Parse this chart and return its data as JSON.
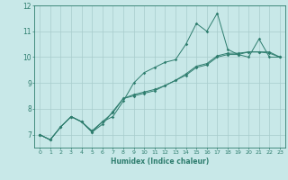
{
  "xlabel": "Humidex (Indice chaleur)",
  "x": [
    0,
    1,
    2,
    3,
    4,
    5,
    6,
    7,
    8,
    9,
    10,
    11,
    12,
    13,
    14,
    15,
    16,
    17,
    18,
    19,
    20,
    21,
    22,
    23
  ],
  "line1": [
    7.0,
    6.8,
    7.3,
    7.7,
    7.5,
    7.1,
    7.5,
    7.7,
    8.3,
    9.0,
    9.4,
    9.6,
    9.8,
    9.9,
    10.5,
    11.3,
    11.0,
    11.7,
    10.3,
    10.1,
    10.0,
    10.7,
    10.0,
    10.0
  ],
  "line2": [
    7.0,
    6.8,
    7.3,
    7.7,
    7.5,
    7.1,
    7.4,
    7.9,
    8.4,
    8.5,
    8.6,
    8.7,
    8.9,
    9.1,
    9.3,
    9.6,
    9.7,
    10.0,
    10.1,
    10.1,
    10.2,
    10.2,
    10.2,
    10.0
  ],
  "line3": [
    7.0,
    6.8,
    7.3,
    7.7,
    7.5,
    7.15,
    7.5,
    7.85,
    8.4,
    8.55,
    8.65,
    8.75,
    8.9,
    9.1,
    9.35,
    9.65,
    9.75,
    10.05,
    10.15,
    10.15,
    10.2,
    10.2,
    10.15,
    10.0
  ],
  "line_color": "#2e7d6e",
  "bg_color": "#c8e8e8",
  "grid_color": "#a8cccc",
  "ylim": [
    6.5,
    12.0
  ],
  "yticks": [
    7,
    8,
    9,
    10,
    11,
    12
  ],
  "xlim": [
    -0.5,
    23.5
  ]
}
